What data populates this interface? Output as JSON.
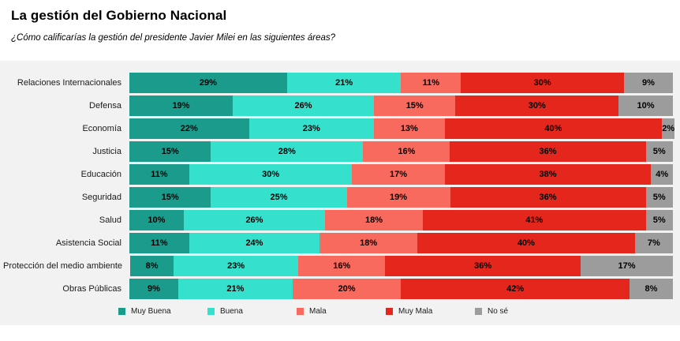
{
  "header": {
    "title": "La gestión del Gobierno Nacional",
    "subtitle": "¿Cómo calificarías la gestión del presidente Javier Milei en las siguientes áreas?"
  },
  "chart_data": {
    "type": "bar",
    "stacked": true,
    "orientation": "horizontal",
    "unit": "%",
    "title": "La gestión del Gobierno Nacional",
    "subtitle": "¿Cómo calificarías la gestión del presidente Javier Milei en las siguientes áreas?",
    "xlim": [
      0,
      100
    ],
    "legend_position": "bottom",
    "background_color": "#f2f2f2",
    "categories": [
      "Relaciones Internacionales",
      "Defensa",
      "Economía",
      "Justicia",
      "Educación",
      "Seguridad",
      "Salud",
      "Asistencia Social",
      "Protección del medio ambiente",
      "Obras Públicas"
    ],
    "series": [
      {
        "name": "Muy Buena",
        "color": "#1a9b8b",
        "values": [
          29,
          19,
          22,
          15,
          11,
          15,
          10,
          11,
          8,
          9
        ]
      },
      {
        "name": "Buena",
        "color": "#35e0cd",
        "values": [
          21,
          26,
          23,
          28,
          30,
          25,
          26,
          24,
          23,
          21
        ]
      },
      {
        "name": "Mala",
        "color": "#f8695e",
        "values": [
          11,
          15,
          13,
          16,
          17,
          19,
          18,
          18,
          16,
          20
        ]
      },
      {
        "name": "Muy Mala",
        "color": "#e5261c",
        "values": [
          30,
          30,
          40,
          36,
          38,
          36,
          41,
          40,
          36,
          42
        ]
      },
      {
        "name": "No sé",
        "color": "#9c9c9c",
        "values": [
          9,
          10,
          2,
          5,
          4,
          5,
          5,
          7,
          17,
          8
        ]
      }
    ]
  }
}
